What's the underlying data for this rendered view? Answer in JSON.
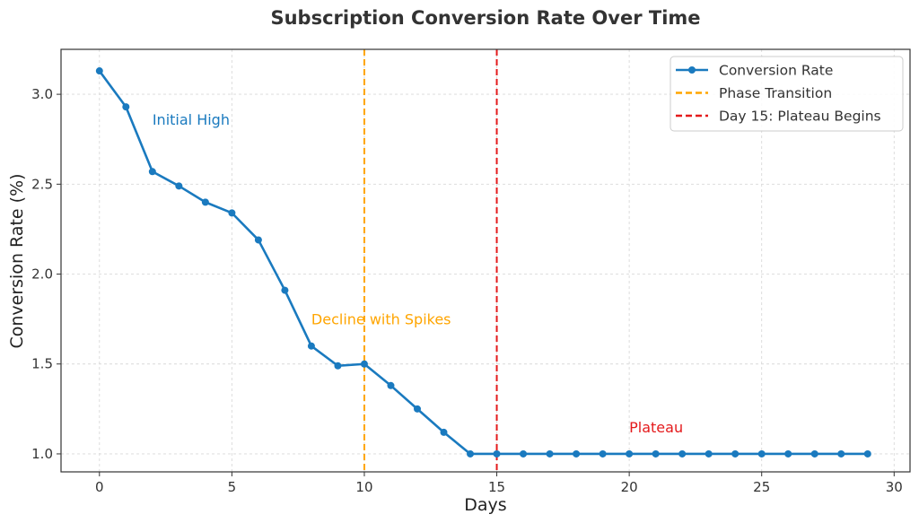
{
  "chart_data": {
    "type": "line",
    "title": "Subscription Conversion Rate Over Time",
    "xlabel": "Days",
    "ylabel": "Conversion Rate (%)",
    "xlim": [
      -1.45,
      30.6
    ],
    "ylim": [
      0.9,
      3.25
    ],
    "xticks": [
      0,
      5,
      10,
      15,
      20,
      25,
      30
    ],
    "yticks": [
      1.0,
      1.5,
      2.0,
      2.5,
      3.0
    ],
    "xtick_labels": [
      "0",
      "5",
      "10",
      "15",
      "20",
      "25",
      "30"
    ],
    "ytick_labels": [
      "1.0",
      "1.5",
      "2.0",
      "2.5",
      "3.0"
    ],
    "grid": true,
    "legend_position": "top-right",
    "series": [
      {
        "name": "Conversion Rate",
        "color": "#1a7abf",
        "marker": "circle",
        "x": [
          0,
          1,
          2,
          3,
          4,
          5,
          6,
          7,
          8,
          9,
          10,
          11,
          12,
          13,
          14,
          15,
          16,
          17,
          18,
          19,
          20,
          21,
          22,
          23,
          24,
          25,
          26,
          27,
          28,
          29
        ],
        "y": [
          3.13,
          2.93,
          2.57,
          2.49,
          2.4,
          2.34,
          2.19,
          1.91,
          1.6,
          1.49,
          1.5,
          1.38,
          1.25,
          1.12,
          1.0,
          1.0,
          1.0,
          1.0,
          1.0,
          1.0,
          1.0,
          1.0,
          1.0,
          1.0,
          1.0,
          1.0,
          1.0,
          1.0,
          1.0,
          1.0
        ]
      }
    ],
    "vlines": [
      {
        "name": "Phase Transition",
        "x": 10,
        "color": "#ffa500",
        "style": "dashed"
      },
      {
        "name": "Day 15: Plateau Begins",
        "x": 15,
        "color": "#e41a1c",
        "style": "dashed"
      }
    ],
    "annotations": [
      {
        "text": "Initial High",
        "x": 2,
        "y": 2.83,
        "color": "#1a7abf"
      },
      {
        "text": "Decline with Spikes",
        "x": 8,
        "y": 1.72,
        "color": "#ffa500"
      },
      {
        "text": "Plateau",
        "x": 20,
        "y": 1.12,
        "color": "#e41a1c"
      }
    ]
  }
}
